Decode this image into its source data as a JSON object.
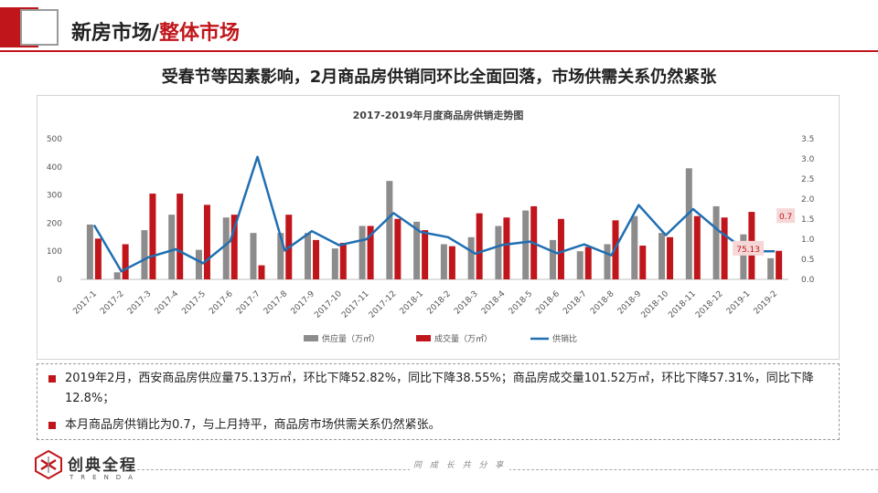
{
  "header": {
    "title_main": "新房市场/",
    "title_accent": "整体市场"
  },
  "subtitle": "受春节等因素影响，2月商品房供销同环比全面回落，市场供需关系仍然紧张",
  "colors": {
    "brand": "#c0151b",
    "supply": "#8c8c8c",
    "sales": "#c0151b",
    "ratio": "#1f6fb2"
  },
  "chart_data": {
    "type": "bar",
    "title": "2017-2019年月度商品房供销走势图",
    "categories": [
      "2017-1",
      "2017-2",
      "2017-3",
      "2017-4",
      "2017-5",
      "2017-6",
      "2017-7",
      "2017-8",
      "2017-9",
      "2017-10",
      "2017-11",
      "2017-12",
      "2018-1",
      "2018-2",
      "2018-3",
      "2018-4",
      "2018-5",
      "2018-6",
      "2018-7",
      "2018-8",
      "2018-9",
      "2018-10",
      "2018-11",
      "2018-12",
      "2019-1",
      "2019-2"
    ],
    "series": [
      {
        "name": "供应量（万㎡）",
        "axis": "left",
        "kind": "bar",
        "values": [
          195,
          25,
          175,
          230,
          105,
          220,
          165,
          165,
          165,
          110,
          190,
          350,
          205,
          125,
          150,
          190,
          245,
          140,
          100,
          125,
          225,
          165,
          395,
          260,
          160,
          75.13
        ]
      },
      {
        "name": "成交量（万㎡）",
        "axis": "left",
        "kind": "bar",
        "values": [
          145,
          125,
          305,
          305,
          265,
          230,
          50,
          230,
          140,
          130,
          190,
          215,
          175,
          118,
          235,
          220,
          260,
          215,
          115,
          210,
          120,
          150,
          225,
          220,
          240,
          101.52
        ]
      },
      {
        "name": "供销比",
        "axis": "right",
        "kind": "line",
        "values": [
          1.35,
          0.2,
          0.55,
          0.75,
          0.4,
          0.95,
          3.05,
          0.72,
          1.2,
          0.85,
          1.0,
          1.65,
          1.18,
          1.05,
          0.64,
          0.86,
          0.94,
          0.65,
          0.87,
          0.6,
          1.85,
          1.1,
          1.75,
          1.18,
          0.7,
          0.7
        ]
      }
    ],
    "y_left": {
      "min": 0,
      "max": 500,
      "ticks": [
        "0",
        "100",
        "200",
        "300",
        "400",
        "500"
      ]
    },
    "y_right": {
      "min": 0,
      "max": 3.5,
      "ticks": [
        "0.0",
        "0.5",
        "1.0",
        "1.5",
        "2.0",
        "2.5",
        "3.0",
        "3.5"
      ]
    },
    "annotations": [
      {
        "series": "供应量（万㎡）",
        "category": "2019-2",
        "label": "75.13"
      },
      {
        "series": "供销比",
        "category": "2019-2",
        "label": "0.7"
      }
    ],
    "legend": [
      "供应量（万㎡）",
      "成交量（万㎡）",
      "供销比"
    ],
    "legend_position": "bottom"
  },
  "notes": [
    "2019年2月，西安商品房供应量75.13万㎡，环比下降52.82%，同比下降38.55%；商品房成交量101.52万㎡，环比下降57.31%，同比下降12.8%；",
    "本月商品房供销比为0.7，与上月持平，商品房市场供需关系仍然紧张。"
  ],
  "footer": {
    "logo_cn": "创典全程",
    "logo_en": "TRENDA",
    "slogan": "同 成 长  共 分 享"
  }
}
